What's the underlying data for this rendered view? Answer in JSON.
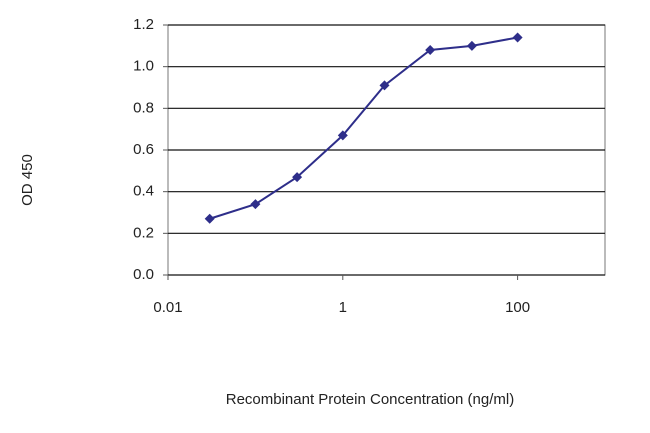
{
  "chart_data": {
    "type": "line",
    "x_label": "Recombinant Protein Concentration (ng/ml)",
    "y_label": "OD 450",
    "x": [
      0.03,
      0.1,
      0.3,
      1,
      3,
      10,
      30,
      100
    ],
    "series": [
      {
        "color": "#2e2e8a",
        "values": [
          0.27,
          0.34,
          0.47,
          0.67,
          0.91,
          1.08,
          1.1,
          1.14
        ]
      }
    ],
    "xscale": "log",
    "xlim": [
      0.01,
      1000
    ],
    "xticks": [
      0.01,
      1,
      100
    ],
    "ylim": [
      0,
      1.2
    ],
    "yticks": [
      {
        "value": 0,
        "label": "0.0"
      },
      {
        "value": 0.2,
        "label": "0.2"
      },
      {
        "value": 0.4,
        "label": "0.4"
      },
      {
        "value": 0.6,
        "label": "0.6"
      },
      {
        "value": 0.8,
        "label": "0.8"
      },
      {
        "value": 1.0,
        "label": "1.0"
      },
      {
        "value": 1.2,
        "label": "1.2"
      }
    ],
    "grid": true
  }
}
